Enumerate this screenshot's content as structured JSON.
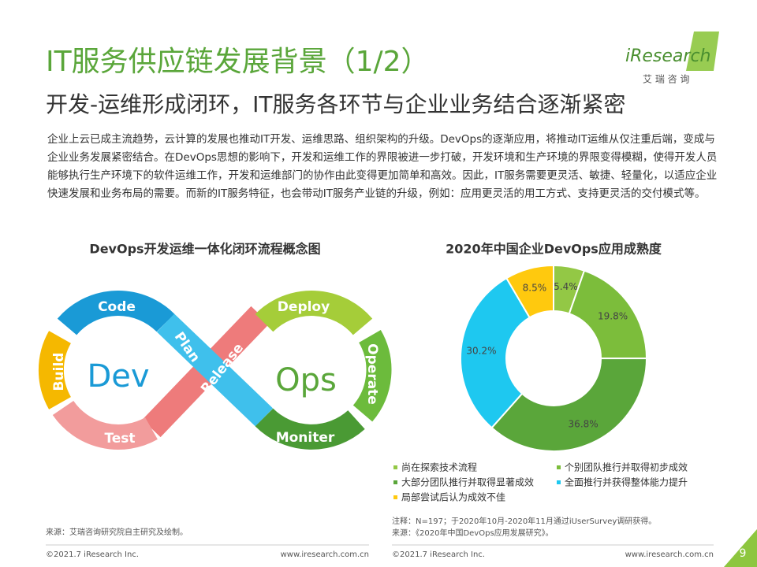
{
  "header": {
    "title": "IT服务供应链发展背景（1/2）",
    "subtitle": "开发-运维形成闭环，IT服务各环节与企业业务结合逐渐紧密",
    "logo": "iResearch",
    "logo_sub": "艾 瑞 咨 询"
  },
  "paragraph": "企业上云已成主流趋势，云计算的发展也推动IT开发、运维思路、组织架构的升级。DevOps的逐渐应用，将推动IT运维从仅注重后端，变成与企业业务发展紧密结合。在DevOps思想的影响下，开发和运维工作的界限被进一步打破，开发环境和生产环境的界限变得模糊，使得开发人员能够执行生产环境下的软件运维工作，开发和运维部门的协作由此变得更加简单和高效。因此，IT服务需要更灵活、敏捷、轻量化，以适应企业快速发展和业务布局的需要。而新的IT服务特征，也会带动IT服务产业链的升级，例如：应用更灵活的用工方式、支持更灵活的交付模式等。",
  "diagram": {
    "title": "DevOps开发运维一体化闭环流程概念图",
    "dev": "Dev",
    "ops": "Ops",
    "steps": {
      "code": "Code",
      "plan": "Plan",
      "build": "Build",
      "test": "Test",
      "release": "Release",
      "deploy": "Deploy",
      "operate": "Operate",
      "monitor": "Moniter"
    }
  },
  "chart_data": {
    "type": "donut",
    "title": "2020年中国企业DevOps应用成熟度",
    "categories": [
      "尚在探索技术流程",
      "个别团队推行并取得初步成效",
      "大部分团队推行并取得显著成效",
      "全面推行并获得整体能力提升",
      "局部尝试后认为成效不佳"
    ],
    "values": [
      5.4,
      19.8,
      36.8,
      30.2,
      8.5
    ],
    "value_labels": [
      "5.4%",
      "19.8%",
      "36.8%",
      "30.2%",
      "8.5%"
    ],
    "colors": [
      "#93c845",
      "#7cbd3b",
      "#5aa63a",
      "#1ec8f0",
      "#ffc90e"
    ]
  },
  "notes": {
    "left_source": "来源：艾瑞咨询研究院自主研究及绘制。",
    "right_note": "注释：N=197；于2020年10月-2020年11月通过iUserSurvey调研获得。",
    "right_source": "来源：《2020年中国DevOps应用发展研究》。"
  },
  "footer": {
    "copyright_left": "©2021.7 iResearch Inc.",
    "url_left": "www.iresearch.com.cn",
    "copyright_right": "©2021.7 iResearch Inc.",
    "url_right": "www.iresearch.com.cn",
    "page": "9"
  }
}
